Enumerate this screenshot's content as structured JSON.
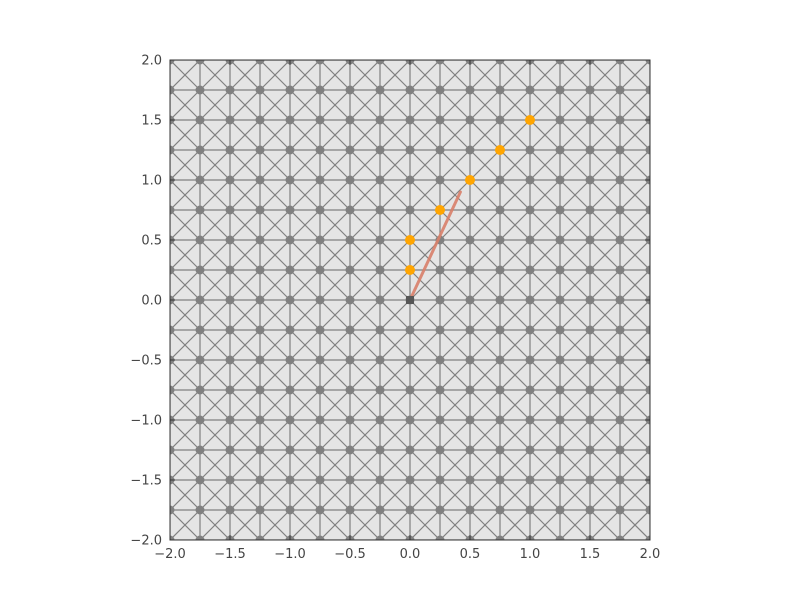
{
  "chart_data": {
    "type": "scatter",
    "title": "",
    "xlabel": "",
    "ylabel": "",
    "xlim": [
      -2.0,
      2.0
    ],
    "ylim": [
      -2.0,
      2.0
    ],
    "xticks": [
      "−2.0",
      "−1.5",
      "−1.0",
      "−0.5",
      "0.0",
      "0.5",
      "1.0",
      "1.5",
      "2.0"
    ],
    "yticks": [
      "−2.0",
      "−1.5",
      "−1.0",
      "−0.5",
      "0.0",
      "0.5",
      "1.0",
      "1.5",
      "2.0"
    ],
    "grid": false,
    "background_color": "#e5e5e5",
    "lattice": {
      "spacing": 0.25,
      "node_color": "#808080",
      "edge_color": "#808080",
      "edges": [
        "horizontal",
        "vertical",
        "diagonal"
      ]
    },
    "highlighted_points": {
      "color": "#ffa500",
      "points": [
        {
          "x": 0.0,
          "y": 0.25
        },
        {
          "x": 0.0,
          "y": 0.5
        },
        {
          "x": 0.25,
          "y": 0.75
        },
        {
          "x": 0.5,
          "y": 1.0
        },
        {
          "x": 0.75,
          "y": 1.25
        },
        {
          "x": 1.0,
          "y": 1.5
        }
      ]
    },
    "vector": {
      "color": "#d9806a",
      "from": {
        "x": 0.0,
        "y": 0.0
      },
      "to": {
        "x": 0.42,
        "y": 0.9
      }
    },
    "origin_marker": {
      "color": "#555555",
      "x": 0.0,
      "y": 0.0
    }
  }
}
